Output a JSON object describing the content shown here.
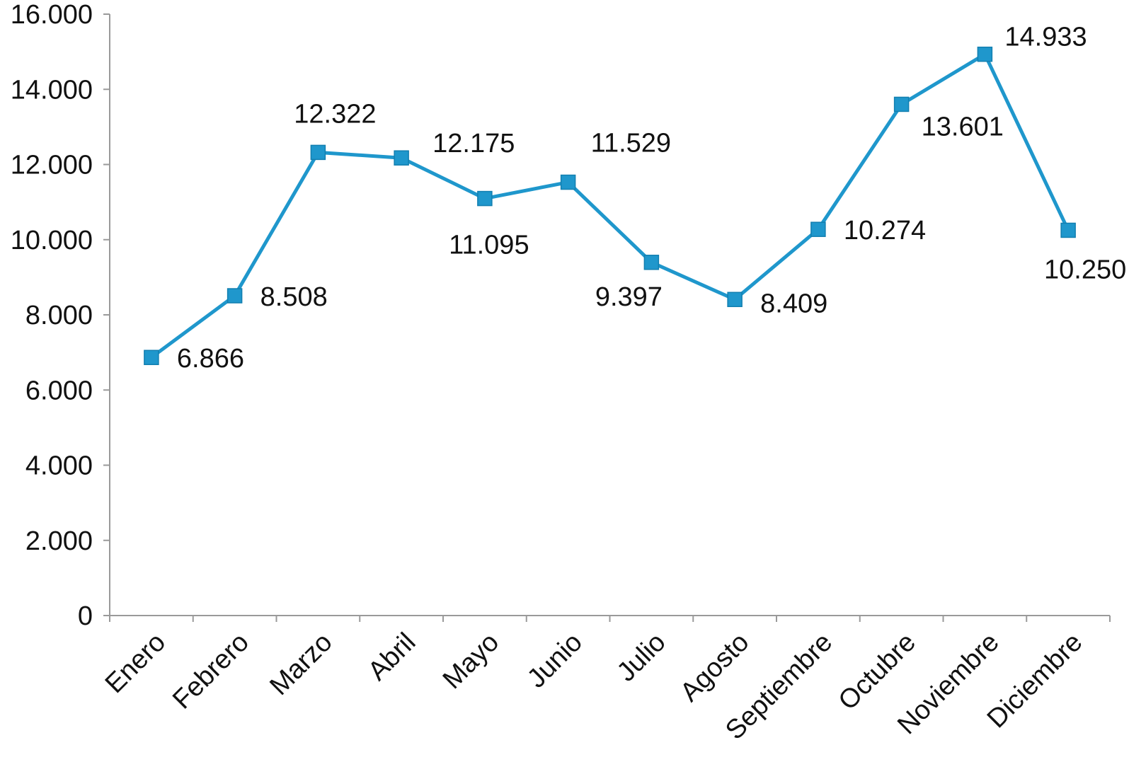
{
  "chart_data": {
    "type": "line",
    "title": "",
    "xlabel": "",
    "ylabel": "",
    "categories": [
      "Enero",
      "Febrero",
      "Marzo",
      "Abril",
      "Mayo",
      "Junio",
      "Julio",
      "Agosto",
      "Septiembre",
      "Octubre",
      "Noviembre",
      "Diciembre"
    ],
    "series": [
      {
        "values": [
          6866,
          8508,
          12322,
          12175,
          11095,
          11529,
          9397,
          8409,
          10274,
          13601,
          14933,
          10250
        ],
        "data_labels": [
          "6.866",
          "8.508",
          "12.322",
          "12.175",
          "11.095",
          "11.529",
          "9.397",
          "8.409",
          "10.274",
          "13.601",
          "14.933",
          "10.250"
        ],
        "color": "#1f97cc"
      }
    ],
    "ylim": [
      0,
      16000
    ],
    "yticks": [
      0,
      2000,
      4000,
      6000,
      8000,
      10000,
      12000,
      14000,
      16000
    ],
    "ytick_labels": [
      "0",
      "2.000",
      "4.000",
      "6.000",
      "8.000",
      "10.000",
      "12.000",
      "14.000",
      "16.000"
    ],
    "grid": false,
    "legend": "none",
    "marker": "square",
    "axis_color": "#9a9a9a"
  }
}
